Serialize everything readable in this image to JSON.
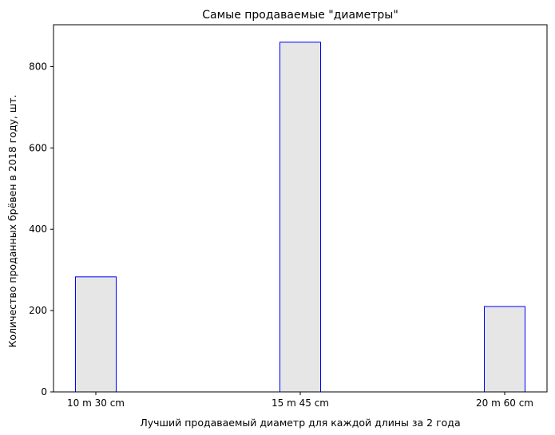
{
  "chart_data": {
    "type": "bar",
    "title": "Самые продаваемые \"диаметры\"",
    "xlabel": "Лучший продаваемый диаметр для каждой длины за 2 года",
    "ylabel": "Количество проданных брёвен в 2018 году, шт.",
    "categories": [
      "10 m 30 cm",
      "15 m 45 cm",
      "20 m 60 cm"
    ],
    "values": [
      283,
      860,
      210
    ],
    "ylim": [
      0,
      903
    ],
    "yticks": [
      0,
      200,
      400,
      600,
      800
    ],
    "grid": false,
    "legend": "none",
    "bar_fill": "#e6e6e6",
    "bar_edge": "#0000ff"
  }
}
